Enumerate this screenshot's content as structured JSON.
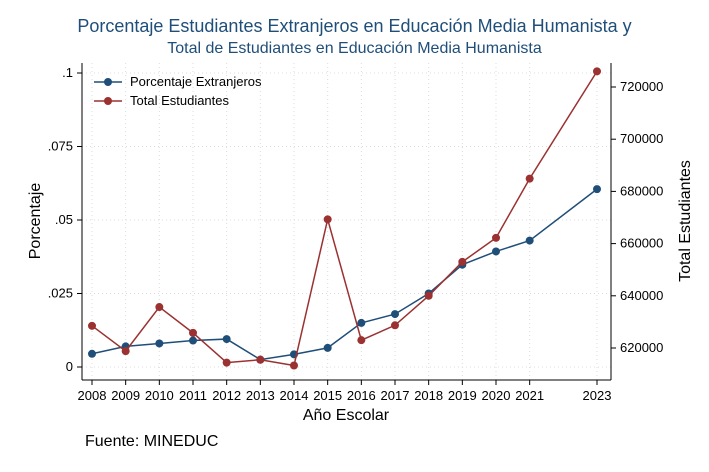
{
  "chart_data": {
    "type": "line",
    "title": "Porcentaje Estudiantes Extranjeros en Educación Media Humanista y",
    "subtitle": "Total de Estudiantes en Educación Media Humanista",
    "xlabel": "Año Escolar",
    "ylabel_left": "Porcentaje",
    "ylabel_right": "Total Estudiantes",
    "x": [
      2008,
      2009,
      2010,
      2011,
      2012,
      2013,
      2014,
      2015,
      2016,
      2017,
      2018,
      2019,
      2020,
      2021,
      2023
    ],
    "x_ticks": [
      "2008",
      "2009",
      "2010",
      "2011",
      "2012",
      "2013",
      "2014",
      "2015",
      "2016",
      "2017",
      "2018",
      "2019",
      "2020",
      "2021",
      "2023"
    ],
    "ylim_left": [
      0,
      0.1
    ],
    "y_ticks_left": [
      0,
      0.025,
      0.05,
      0.075,
      0.1
    ],
    "y_tick_labels_left": [
      "0",
      ".025",
      ".05",
      ".075",
      ".1"
    ],
    "ylim_right": [
      611500,
      728500
    ],
    "y_ticks_right": [
      620000,
      640000,
      660000,
      680000,
      700000,
      720000
    ],
    "y_tick_labels_right": [
      "620000",
      "640000",
      "660000",
      "680000",
      "700000",
      "720000"
    ],
    "grid": true,
    "legend_position": "top-left",
    "series": [
      {
        "name": "Porcentaje Extranjeros",
        "axis": "left",
        "color": "#1f4e79",
        "values": [
          0.0045,
          0.007,
          0.008,
          0.009,
          0.0095,
          0.0025,
          0.0043,
          0.0065,
          0.015,
          0.018,
          0.025,
          0.0348,
          0.0393,
          0.043,
          0.0605
        ]
      },
      {
        "name": "Total Estudiantes",
        "axis": "right",
        "color": "#9b3131",
        "values": [
          628500,
          618800,
          635700,
          625800,
          614400,
          615500,
          613300,
          669300,
          623000,
          628700,
          640000,
          653000,
          662200,
          684900,
          726000
        ]
      }
    ]
  },
  "source_note": "Fuente: MINEDUC"
}
